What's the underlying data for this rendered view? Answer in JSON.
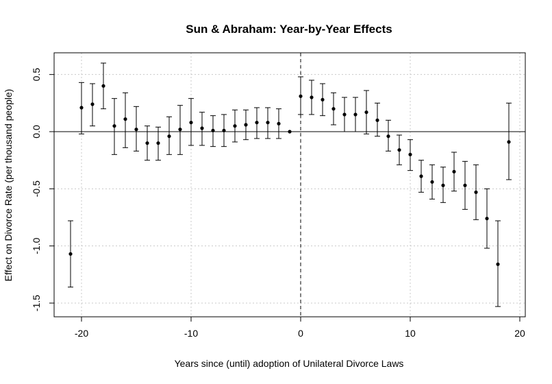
{
  "chart_data": {
    "type": "scatter",
    "title": "Sun & Abraham: Year-by-Year Effects",
    "xlabel": "Years since (until) adoption of Unilateral Divorce Laws",
    "ylabel": "Effect on Divorce Rate (per thousand people)",
    "xlim": [
      -22.5,
      20.5
    ],
    "ylim": [
      -1.62,
      0.69
    ],
    "xticks": [
      -20,
      -10,
      0,
      10,
      20
    ],
    "xtick_labels": [
      "-20",
      "-10",
      "0",
      "10",
      "20"
    ],
    "yticks": [
      -1.5,
      -1.0,
      -0.5,
      0.0,
      0.5
    ],
    "ytick_labels": [
      "-1.5",
      "-1.0",
      "-0.5",
      "0.0",
      "0.5"
    ],
    "grid": true,
    "hline": 0,
    "vline": 0,
    "series": [
      {
        "x": [
          -21,
          -20,
          -19,
          -18,
          -17,
          -16,
          -15,
          -14,
          -13,
          -12,
          -11,
          -10,
          -9,
          -8,
          -7,
          -6,
          -5,
          -4,
          -3,
          -2,
          -1,
          0,
          1,
          2,
          3,
          4,
          5,
          6,
          7,
          8,
          9,
          10,
          11,
          12,
          13,
          14,
          15,
          16,
          17,
          18,
          19
        ],
        "y": [
          -1.07,
          0.21,
          0.24,
          0.4,
          0.05,
          0.11,
          0.02,
          -0.1,
          -0.1,
          -0.04,
          0.02,
          0.08,
          0.03,
          0.01,
          0.01,
          0.05,
          0.06,
          0.08,
          0.08,
          0.07,
          0.0,
          0.31,
          0.3,
          0.28,
          0.2,
          0.15,
          0.15,
          0.17,
          0.1,
          -0.04,
          -0.16,
          -0.2,
          -0.39,
          -0.44,
          -0.47,
          -0.35,
          -0.47,
          -0.53,
          -0.76,
          -1.16,
          -0.09
        ],
        "lower": [
          -1.36,
          -0.02,
          0.05,
          0.2,
          -0.2,
          -0.14,
          -0.17,
          -0.25,
          -0.25,
          -0.2,
          -0.2,
          -0.12,
          -0.12,
          -0.13,
          -0.13,
          -0.09,
          -0.07,
          -0.06,
          -0.06,
          -0.06,
          0.0,
          0.15,
          0.15,
          0.14,
          0.06,
          0.0,
          0.0,
          -0.02,
          -0.04,
          -0.17,
          -0.29,
          -0.34,
          -0.53,
          -0.59,
          -0.62,
          -0.52,
          -0.68,
          -0.77,
          -1.02,
          -1.53,
          -0.42
        ],
        "upper": [
          -0.78,
          0.43,
          0.42,
          0.6,
          0.29,
          0.34,
          0.22,
          0.05,
          0.04,
          0.13,
          0.23,
          0.29,
          0.17,
          0.14,
          0.15,
          0.19,
          0.19,
          0.21,
          0.21,
          0.2,
          0.0,
          0.48,
          0.45,
          0.42,
          0.34,
          0.3,
          0.3,
          0.36,
          0.25,
          0.1,
          -0.03,
          -0.07,
          -0.25,
          -0.29,
          -0.31,
          -0.18,
          -0.26,
          -0.29,
          -0.5,
          -0.78,
          0.25
        ]
      }
    ]
  }
}
